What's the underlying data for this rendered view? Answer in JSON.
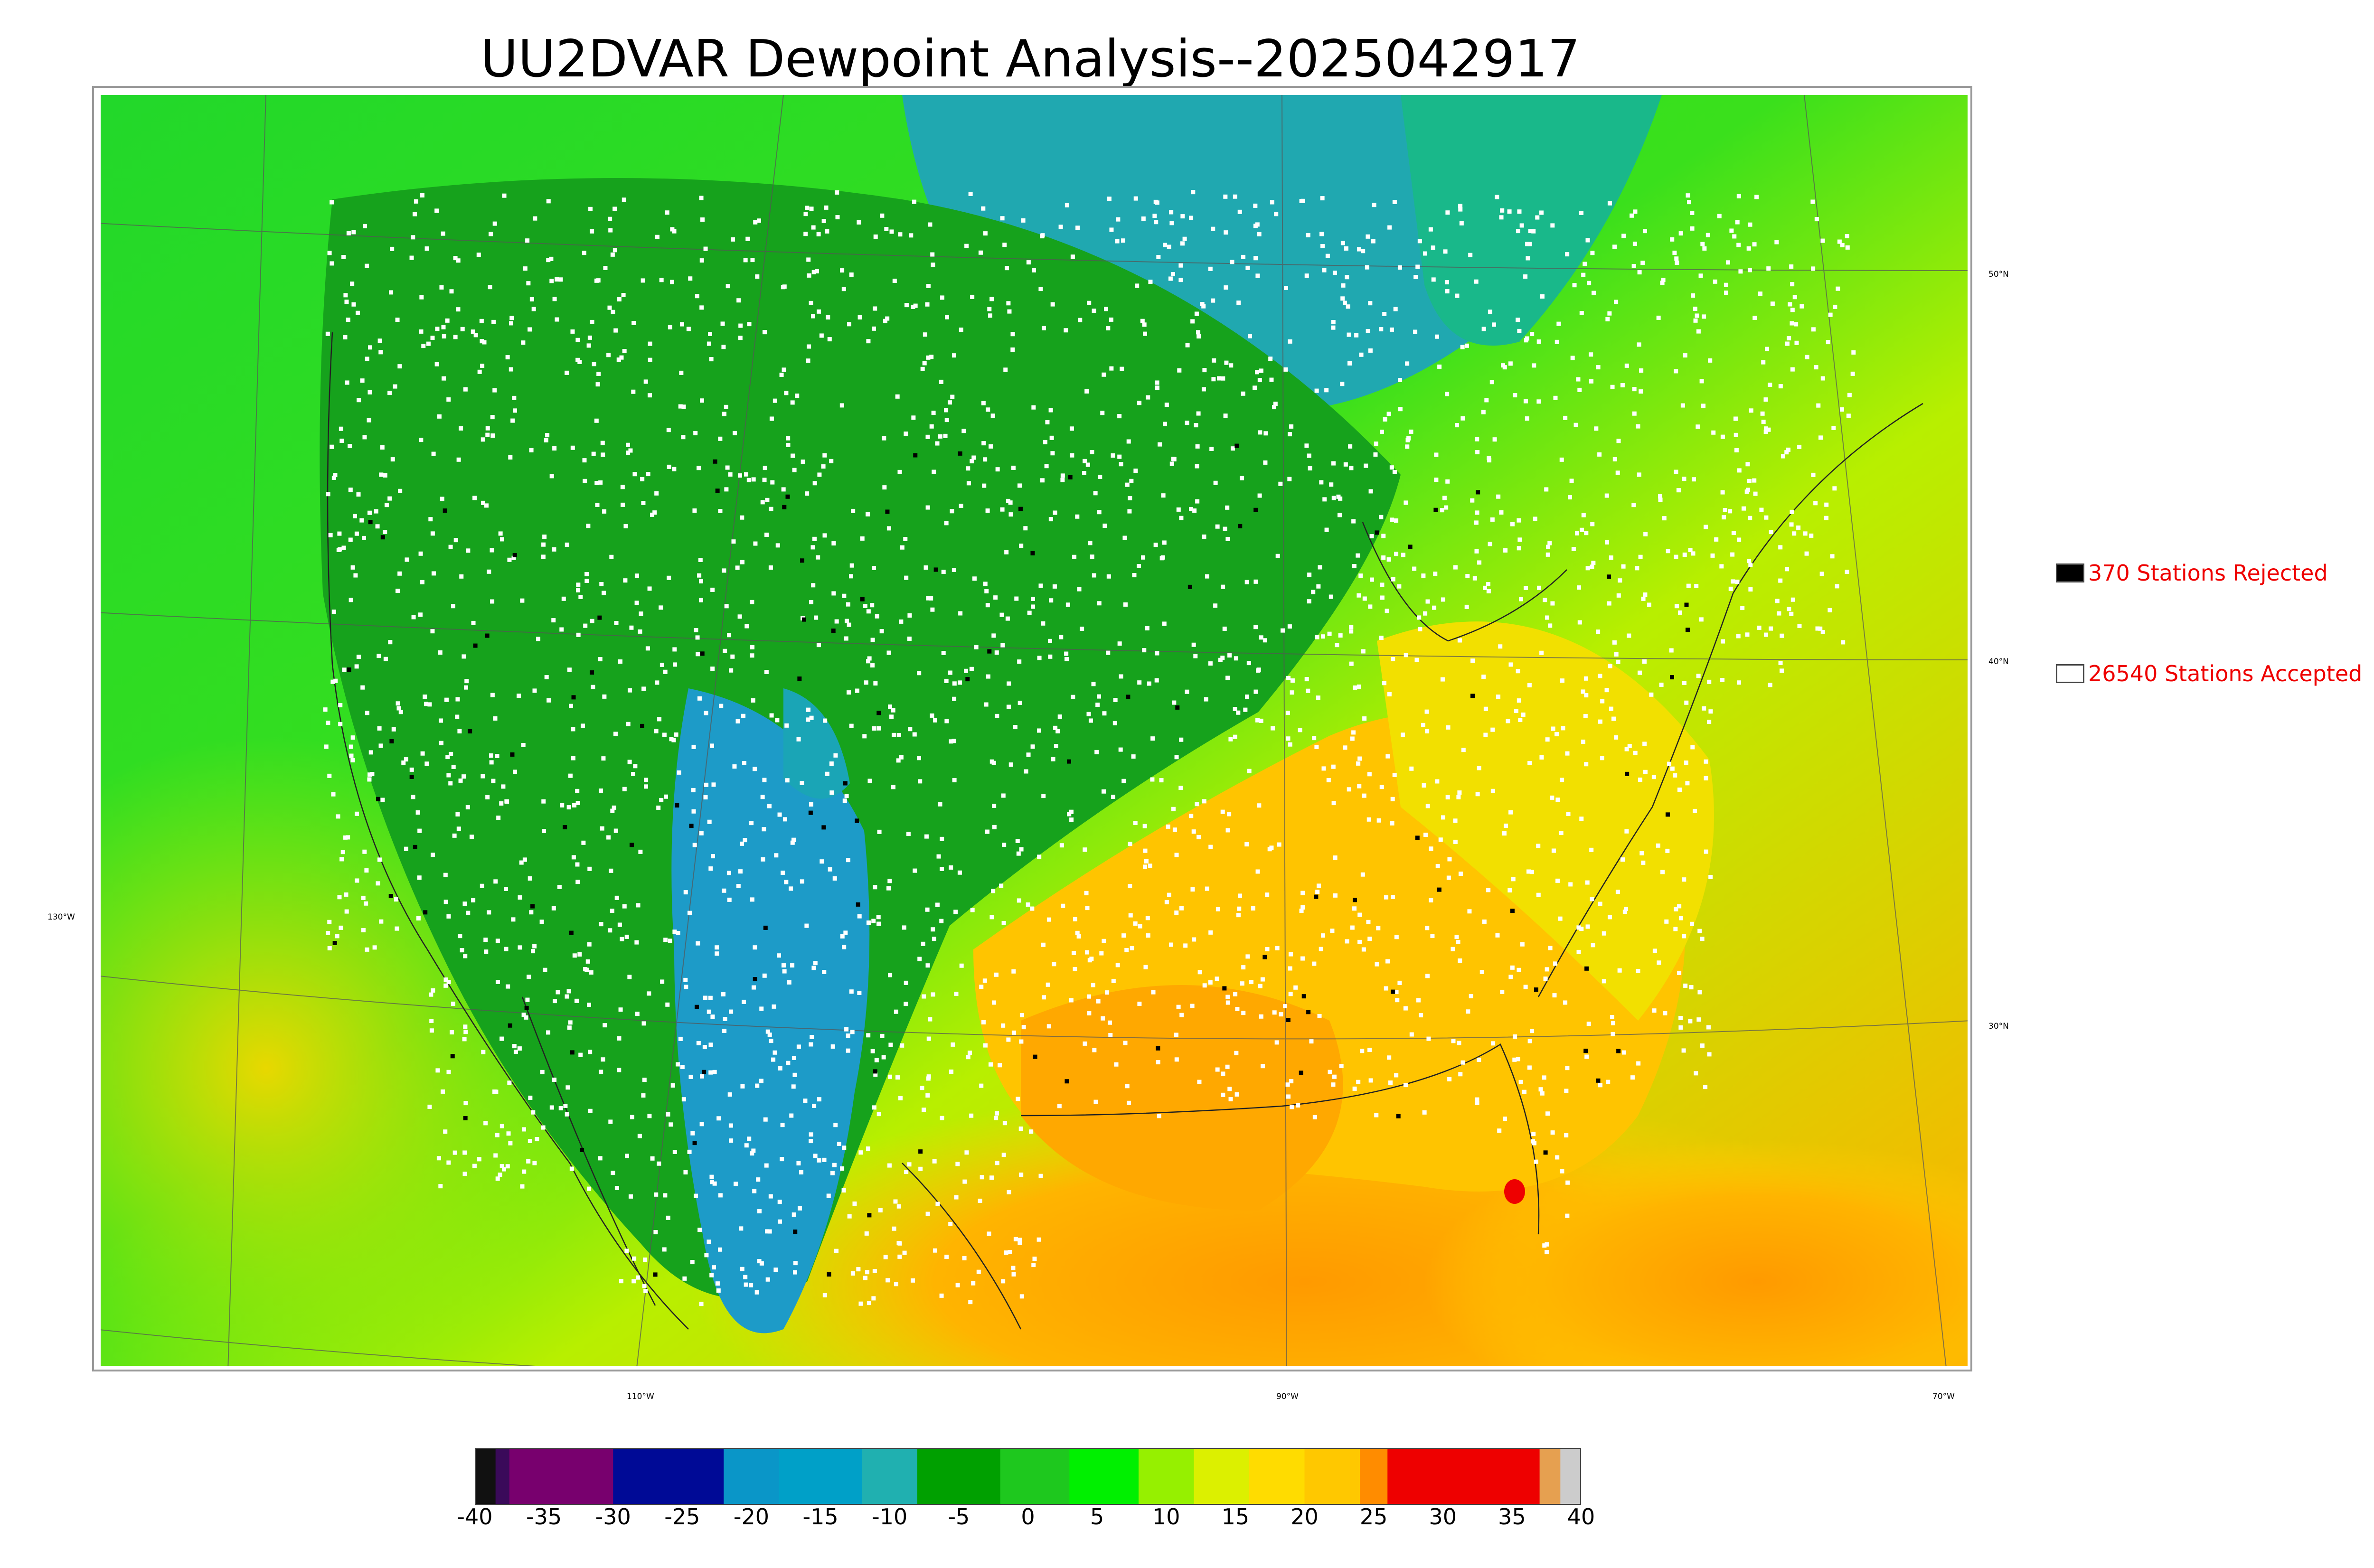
{
  "title": "UU2DVAR Dewpoint Analysis--2025042917",
  "legend": {
    "rejected_label": "370 Stations Rejected",
    "accepted_label": "26540 Stations Accepted",
    "text_color": "#ee0000"
  },
  "graticule": {
    "lat_labels": [
      "50°N",
      "40°N",
      "30°N"
    ],
    "lon_labels": [
      "130°W",
      "110°W",
      "90°W",
      "70°W"
    ]
  },
  "colorbar": {
    "ticks": [
      "-40",
      "-35",
      "-30",
      "-25",
      "-20",
      "-15",
      "-10",
      "-5",
      "0",
      "5",
      "10",
      "15",
      "20",
      "25",
      "30",
      "35",
      "40"
    ],
    "segments": [
      {
        "from": -40,
        "to": -38.5,
        "color": "#111111"
      },
      {
        "from": -38.5,
        "to": -37.5,
        "color": "#3a0a5a"
      },
      {
        "from": -37.5,
        "to": -30,
        "color": "#78006e"
      },
      {
        "from": -30,
        "to": -22,
        "color": "#000a96"
      },
      {
        "from": -22,
        "to": -18,
        "color": "#0a96c8"
      },
      {
        "from": -18,
        "to": -12,
        "color": "#00a0c8"
      },
      {
        "from": -12,
        "to": -8,
        "color": "#20b0b0"
      },
      {
        "from": -8,
        "to": -2,
        "color": "#00a000"
      },
      {
        "from": -2,
        "to": 3,
        "color": "#1ec81e"
      },
      {
        "from": 3,
        "to": 8,
        "color": "#00f000"
      },
      {
        "from": 8,
        "to": 12,
        "color": "#96f000"
      },
      {
        "from": 12,
        "to": 16,
        "color": "#dcf000"
      },
      {
        "from": 16,
        "to": 20,
        "color": "#ffdc00"
      },
      {
        "from": 20,
        "to": 24,
        "color": "#ffc800"
      },
      {
        "from": 24,
        "to": 26,
        "color": "#ff8c00"
      },
      {
        "from": 26,
        "to": 37,
        "color": "#ee0000"
      },
      {
        "from": 37,
        "to": 38.5,
        "color": "#e6a050"
      },
      {
        "from": 38.5,
        "to": 40,
        "color": "#cccccc"
      }
    ]
  },
  "colors": {
    "accepted": "#ffffff",
    "rejected": "#000000",
    "dry": "#1e9acb",
    "mid_green": "#169f1a",
    "green": "#2ed32a",
    "yellow_green": "#c3f200",
    "yellow": "#f8d800",
    "orange": "#ffa800"
  }
}
